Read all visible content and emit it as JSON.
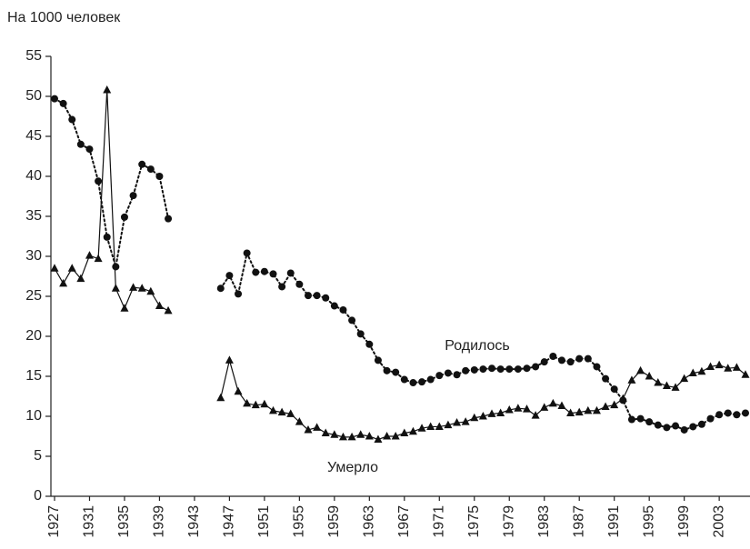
{
  "chart_data": {
    "type": "line",
    "y_label": "На 1000 человек",
    "x": [
      1927,
      1928,
      1929,
      1930,
      1931,
      1932,
      1933,
      1934,
      1935,
      1936,
      1937,
      1938,
      1939,
      1940,
      1941,
      1942,
      1943,
      1944,
      1945,
      1946,
      1947,
      1948,
      1949,
      1950,
      1951,
      1952,
      1953,
      1954,
      1955,
      1956,
      1957,
      1958,
      1959,
      1960,
      1961,
      1962,
      1963,
      1964,
      1965,
      1966,
      1967,
      1968,
      1969,
      1970,
      1971,
      1972,
      1973,
      1974,
      1975,
      1976,
      1977,
      1978,
      1979,
      1980,
      1981,
      1982,
      1983,
      1984,
      1985,
      1986,
      1987,
      1988,
      1989,
      1990,
      1991,
      1992,
      1993,
      1994,
      1995,
      1996,
      1997,
      1998,
      1999,
      2000,
      2001,
      2002,
      2003,
      2004,
      2005,
      2006
    ],
    "series": [
      {
        "name": "Родилось",
        "color": "#111111",
        "marker": "circle",
        "line_style": "dotted",
        "values": [
          49.7,
          49.1,
          47.1,
          44.0,
          43.4,
          39.4,
          32.4,
          28.7,
          34.9,
          37.6,
          41.5,
          40.9,
          40.0,
          34.7,
          null,
          null,
          null,
          null,
          null,
          26.0,
          27.6,
          25.3,
          30.4,
          28.0,
          28.1,
          27.8,
          26.2,
          27.9,
          26.5,
          25.1,
          25.1,
          24.8,
          23.8,
          23.3,
          22.0,
          20.3,
          19.0,
          17.0,
          15.7,
          15.5,
          14.6,
          14.2,
          14.3,
          14.6,
          15.1,
          15.4,
          15.2,
          15.7,
          15.8,
          15.9,
          16.0,
          15.9,
          15.9,
          15.9,
          16.0,
          16.2,
          16.8,
          17.5,
          17.0,
          16.8,
          17.2,
          17.2,
          16.2,
          14.7,
          13.4,
          12.0,
          9.6,
          9.7,
          9.3,
          8.9,
          8.6,
          8.8,
          8.3,
          8.7,
          9.0,
          9.7,
          10.2,
          10.4,
          10.2,
          10.4
        ]
      },
      {
        "name": "Умерло",
        "color": "#111111",
        "marker": "triangle",
        "line_style": "solid",
        "values": [
          28.5,
          26.6,
          28.5,
          27.2,
          30.1,
          29.7,
          50.8,
          26.0,
          23.5,
          26.1,
          26.0,
          25.6,
          23.8,
          23.2,
          null,
          null,
          null,
          null,
          null,
          12.3,
          17.0,
          13.1,
          11.6,
          11.4,
          11.5,
          10.7,
          10.5,
          10.3,
          9.3,
          8.3,
          8.6,
          7.9,
          7.7,
          7.4,
          7.4,
          7.7,
          7.5,
          7.1,
          7.5,
          7.5,
          7.9,
          8.1,
          8.5,
          8.7,
          8.7,
          8.9,
          9.2,
          9.3,
          9.8,
          10.0,
          10.3,
          10.4,
          10.8,
          11.0,
          10.9,
          10.1,
          11.1,
          11.6,
          11.3,
          10.4,
          10.5,
          10.7,
          10.7,
          11.2,
          11.4,
          12.2,
          14.5,
          15.7,
          15.0,
          14.2,
          13.8,
          13.6,
          14.7,
          15.4,
          15.6,
          16.2,
          16.4,
          16.0,
          16.1,
          15.2
        ]
      }
    ],
    "xlim": [
      1927,
      2006
    ],
    "xticks": [
      1927,
      1931,
      1935,
      1939,
      1943,
      1947,
      1951,
      1955,
      1959,
      1963,
      1967,
      1971,
      1975,
      1979,
      1983,
      1987,
      1991,
      1995,
      1999,
      2003
    ],
    "ylim": [
      0,
      55
    ],
    "yticks": [
      0,
      5,
      10,
      15,
      20,
      25,
      30,
      35,
      40,
      45,
      50,
      55
    ],
    "grid": false
  }
}
